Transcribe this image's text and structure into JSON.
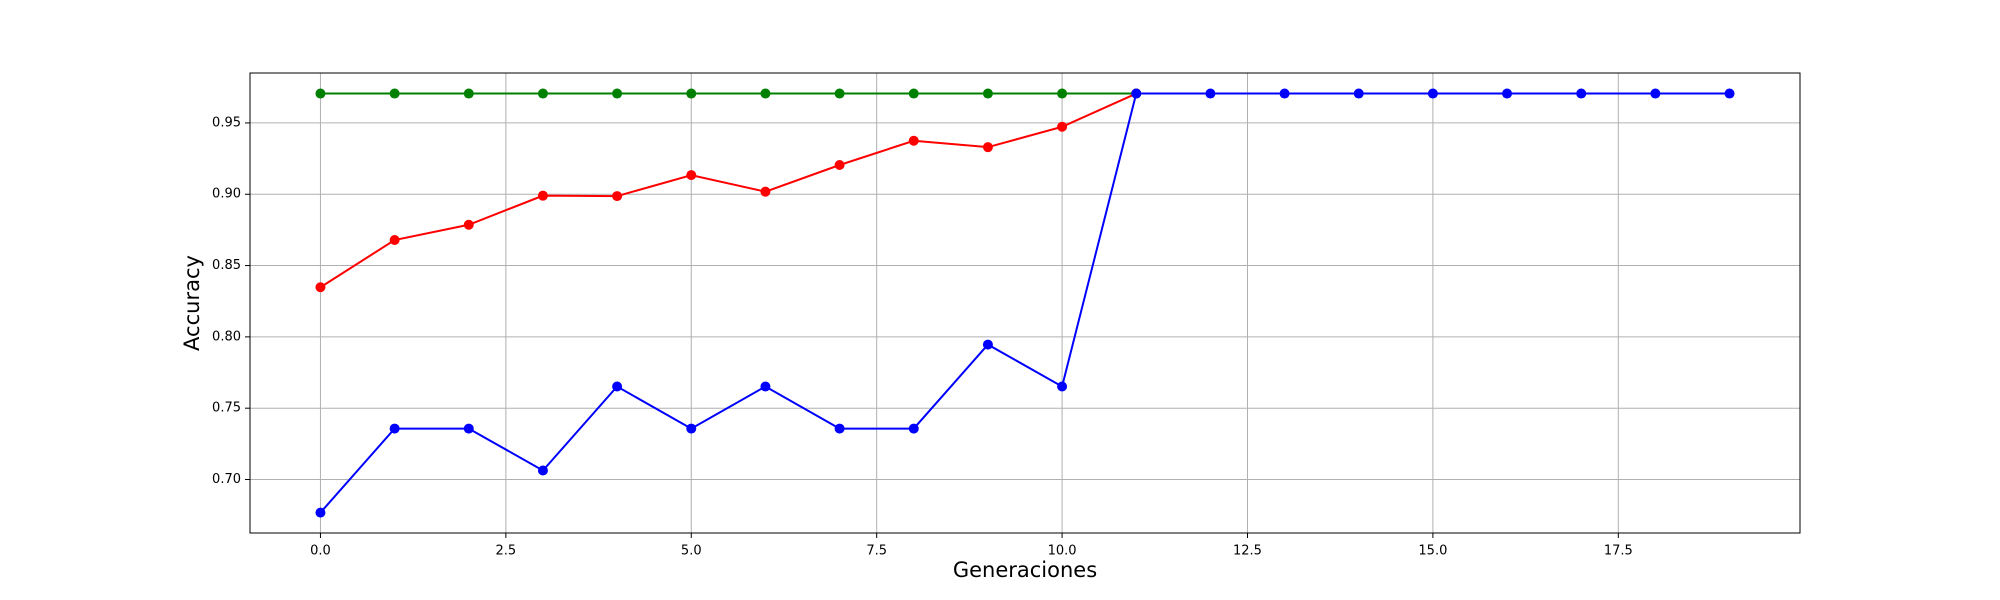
{
  "chart_data": {
    "type": "line",
    "x_label": "Generaciones",
    "y_label": "Accuracy",
    "x": [
      0,
      1,
      2,
      3,
      4,
      5,
      6,
      7,
      8,
      9,
      10,
      11,
      12,
      13,
      14,
      15,
      16,
      17,
      18,
      19
    ],
    "series": [
      {
        "color": "#008000",
        "values": [
          0.9706,
          0.9706,
          0.9706,
          0.9706,
          0.9706,
          0.9706,
          0.9706,
          0.9706,
          0.9706,
          0.9706,
          0.9706,
          0.9706,
          null,
          null,
          null,
          null,
          null,
          null,
          null,
          null
        ]
      },
      {
        "color": "#ff0000",
        "values": [
          0.8348,
          0.8679,
          0.8786,
          0.899,
          0.8987,
          0.9134,
          0.9018,
          0.9205,
          0.9375,
          0.933,
          0.9473,
          0.9706,
          null,
          null,
          null,
          null,
          null,
          null,
          null,
          null
        ]
      },
      {
        "color": "#0000ff",
        "values": [
          0.6768,
          0.7357,
          0.7357,
          0.7063,
          0.7652,
          0.7357,
          0.7652,
          0.7357,
          0.7357,
          0.7946,
          0.7652,
          0.9706,
          0.9706,
          0.9706,
          0.9706,
          0.9706,
          0.9706,
          0.9706,
          0.9706,
          0.9706
        ]
      }
    ],
    "xlim": [
      -0.95,
      19.95
    ],
    "xticks": [
      {
        "value": 0,
        "label": "0.0"
      },
      2.5,
      {
        "value": 5,
        "label": "5.0"
      },
      7.5,
      {
        "value": 10,
        "label": "10.0"
      },
      12.5,
      {
        "value": 15,
        "label": "15.0"
      },
      17.5
    ],
    "ylim": [
      0.6625,
      0.985
    ],
    "yticks": [
      {
        "value": 0.7,
        "label": "0.70"
      },
      0.75,
      {
        "value": 0.8,
        "label": "0.80"
      },
      0.85,
      {
        "value": 0.9,
        "label": "0.90"
      },
      0.95
    ],
    "grid": true
  }
}
